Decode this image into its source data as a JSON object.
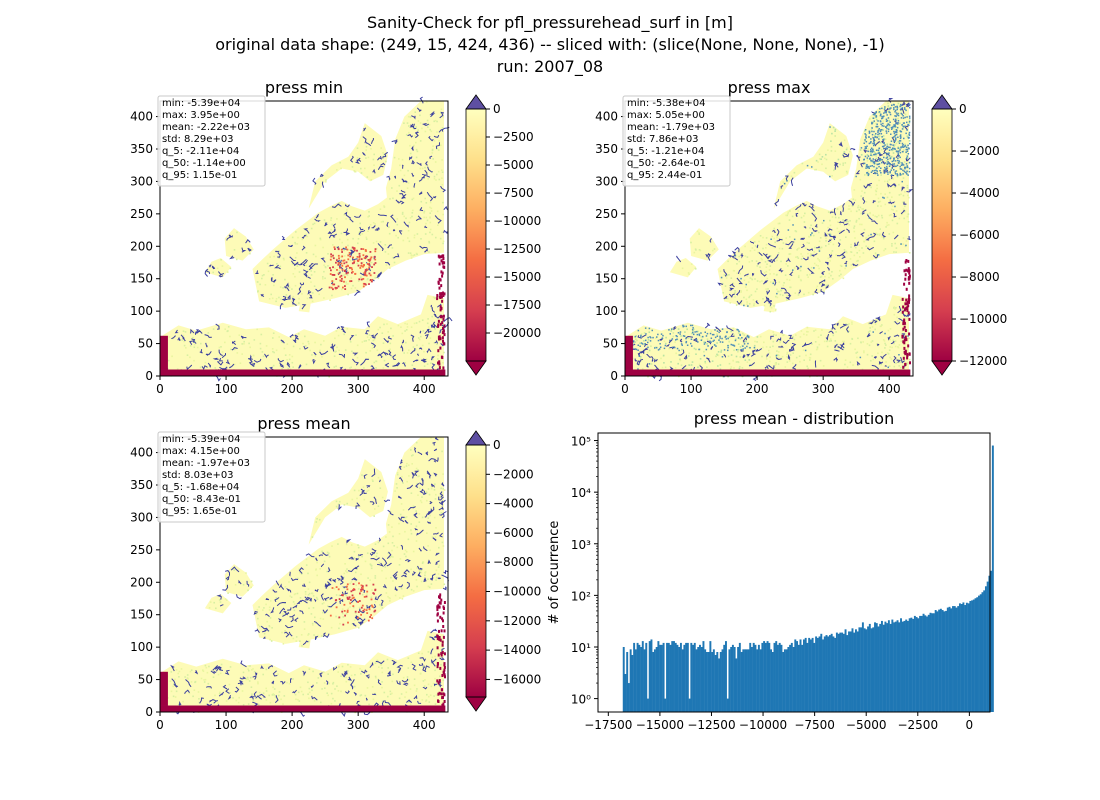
{
  "figure": {
    "title_lines": [
      "Sanity-Check for pfl_pressurehead_surf in [m]",
      "original data shape: (249, 15, 424, 436) -- sliced with: (slice(None, None, None), -1)",
      "run: 2007_08"
    ]
  },
  "colors": {
    "cmap_stops": [
      "#9e0142",
      "#d53e4f",
      "#f46d43",
      "#fdae61",
      "#fee08b",
      "#ffffbf"
    ],
    "over_color": "#5e4fa2",
    "under_color": "#9e0142",
    "hist_bar": "#1f77b4",
    "river": "#3a3f9e",
    "river_high": "#4f8fb8"
  },
  "chart_data": [
    {
      "type": "heatmap",
      "title": "press min",
      "xticks": [
        "0",
        "100",
        "200",
        "300",
        "400"
      ],
      "yticks": [
        "0",
        "50",
        "100",
        "150",
        "200",
        "250",
        "300",
        "350",
        "400"
      ],
      "xlim": [
        0,
        436
      ],
      "ylim": [
        0,
        424
      ],
      "stats": [
        "min: -5.39e+04",
        "max: 3.95e+00",
        "mean: -2.22e+03",
        "std: 8.29e+03",
        "q_5: -2.11e+04",
        "q_50: -1.14e+00",
        "q_95: 1.15e-01"
      ],
      "colorbar": {
        "vmin": -22500,
        "vmax": 0,
        "extend": "both",
        "ticks": [
          0,
          -2500,
          -5000,
          -7500,
          -10000,
          -12500,
          -15000,
          -17500,
          -20000
        ],
        "tick_labels": [
          "0",
          "−2500",
          "−5000",
          "−7500",
          "−10000",
          "−12500",
          "−15000",
          "−17500",
          "−20000"
        ]
      }
    },
    {
      "type": "heatmap",
      "title": "press max",
      "xticks": [
        "0",
        "100",
        "200",
        "300",
        "400"
      ],
      "yticks": [
        "0",
        "50",
        "100",
        "150",
        "200",
        "250",
        "300",
        "350",
        "400"
      ],
      "xlim": [
        0,
        436
      ],
      "ylim": [
        0,
        424
      ],
      "stats": [
        "min: -5.38e+04",
        "max: 5.05e+00",
        "mean: -1.79e+03",
        "std: 7.86e+03",
        "q_5: -1.21e+04",
        "q_50: -2.64e-01",
        "q_95: 2.44e-01"
      ],
      "colorbar": {
        "vmin": -12000,
        "vmax": 0,
        "extend": "both",
        "ticks": [
          0,
          -2000,
          -4000,
          -6000,
          -8000,
          -10000,
          -12000
        ],
        "tick_labels": [
          "0",
          "−2000",
          "−4000",
          "−6000",
          "−8000",
          "−10000",
          "−12000"
        ]
      }
    },
    {
      "type": "heatmap",
      "title": "press mean",
      "xticks": [
        "0",
        "100",
        "200",
        "300",
        "400"
      ],
      "yticks": [
        "0",
        "50",
        "100",
        "150",
        "200",
        "250",
        "300",
        "350",
        "400"
      ],
      "xlim": [
        0,
        436
      ],
      "ylim": [
        0,
        424
      ],
      "stats": [
        "min: -5.39e+04",
        "max: 4.15e+00",
        "mean: -1.97e+03",
        "std: 8.03e+03",
        "q_5: -1.68e+04",
        "q_50: -8.43e-01",
        "q_95: 1.65e-01"
      ],
      "colorbar": {
        "vmin": -17200,
        "vmax": 0,
        "extend": "both",
        "ticks": [
          0,
          -2000,
          -4000,
          -6000,
          -8000,
          -10000,
          -12000,
          -14000,
          -16000
        ],
        "tick_labels": [
          "0",
          "−2000",
          "−4000",
          "−6000",
          "−8000",
          "−10000",
          "−12000",
          "−14000",
          "−16000"
        ]
      }
    },
    {
      "type": "bar",
      "title": "press mean - distribution",
      "ylabel": "# of occurrence",
      "xlabel": "",
      "yscale": "log",
      "xlim": [
        -18000,
        1000
      ],
      "ylim": [
        0.55,
        140000
      ],
      "xticks": [
        -17500,
        -15000,
        -12500,
        -10000,
        -7500,
        -5000,
        -2500,
        0
      ],
      "xtick_labels": [
        "−17500",
        "−15000",
        "−12500",
        "−10000",
        "−7500",
        "−5000",
        "−2500",
        "0"
      ],
      "yticks": [
        1,
        10,
        100,
        1000,
        10000,
        100000
      ],
      "ytick_labels": [
        "10⁰",
        "10¹",
        "10²",
        "10³",
        "10⁴",
        "10⁵"
      ],
      "bin_start": -16800,
      "bin_width": 84,
      "counts": [
        10,
        3,
        8,
        2,
        9,
        7,
        12,
        9,
        12,
        11,
        10,
        13,
        9,
        12,
        1,
        13,
        14,
        8,
        9,
        10,
        13,
        11,
        11,
        12,
        1,
        12,
        12,
        11,
        13,
        13,
        12,
        11,
        10,
        12,
        9,
        11,
        12,
        12,
        1,
        12,
        11,
        12,
        9,
        10,
        11,
        10,
        13,
        9,
        8,
        8,
        13,
        8,
        9,
        7,
        8,
        6,
        8,
        9,
        11,
        13,
        1,
        9,
        10,
        11,
        10,
        6,
        10,
        12,
        8,
        9,
        9,
        9,
        9,
        12,
        10,
        12,
        11,
        9,
        11,
        9,
        12,
        13,
        12,
        13,
        12,
        9,
        8,
        12,
        13,
        11,
        12,
        11,
        8,
        9,
        9,
        10,
        11,
        12,
        10,
        14,
        13,
        11,
        14,
        11,
        14,
        15,
        12,
        15,
        14,
        15,
        12,
        16,
        15,
        16,
        18,
        14,
        16,
        17,
        16,
        17,
        18,
        16,
        15,
        19,
        18,
        19,
        19,
        18,
        22,
        17,
        20,
        20,
        23,
        19,
        22,
        20,
        24,
        24,
        30,
        23,
        22,
        25,
        28,
        23,
        24,
        30,
        29,
        25,
        28,
        32,
        27,
        31,
        29,
        33,
        28,
        34,
        30,
        31,
        33,
        30,
        36,
        31,
        32,
        34,
        32,
        36,
        37,
        35,
        40,
        38,
        36,
        40,
        40,
        44,
        41,
        39,
        42,
        46,
        45,
        45,
        52,
        49,
        53,
        55,
        52,
        49,
        50,
        58,
        60,
        56,
        62,
        62,
        58,
        62,
        70,
        68,
        73,
        65,
        72,
        70,
        78,
        80,
        83,
        88,
        92,
        99,
        105,
        115,
        125,
        150,
        185,
        240,
        300,
        80000
      ]
    }
  ]
}
